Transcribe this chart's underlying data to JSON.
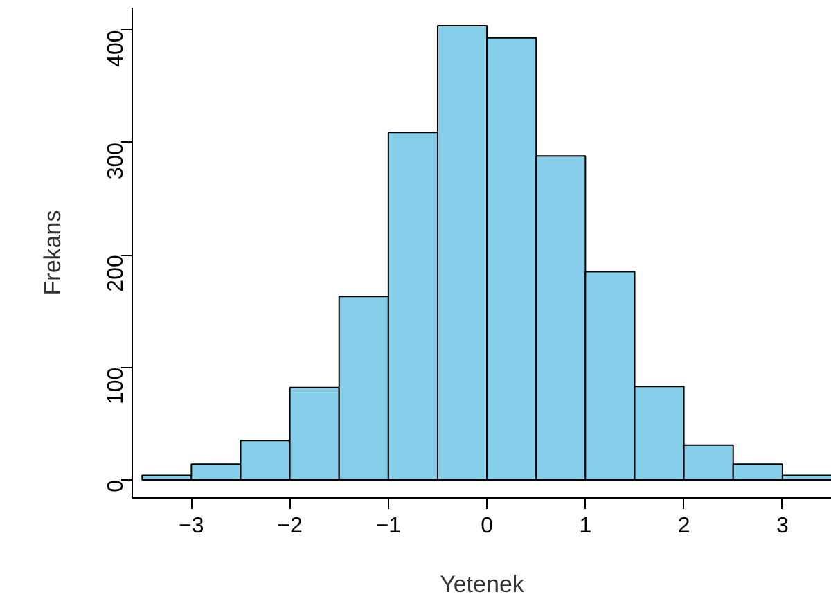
{
  "chart_data": {
    "type": "histogram",
    "xlabel": "Yetenek",
    "ylabel": "Frekans",
    "bins": [
      -3.5,
      -3,
      -2.5,
      -2,
      -1.5,
      -1,
      -0.5,
      0,
      0.5,
      1,
      1.5,
      2,
      2.5,
      3,
      3.5
    ],
    "values": [
      4,
      14,
      35,
      82,
      163,
      309,
      404,
      393,
      288,
      185,
      83,
      31,
      14,
      4
    ],
    "color": "#87ceeb",
    "xlim": [
      -3.6,
      3.5
    ],
    "ylim": [
      -16,
      420
    ],
    "xticks": [
      -3,
      -2,
      -1,
      0,
      1,
      2,
      3
    ],
    "yticks": [
      0,
      100,
      200,
      300,
      400
    ],
    "grid": false
  }
}
